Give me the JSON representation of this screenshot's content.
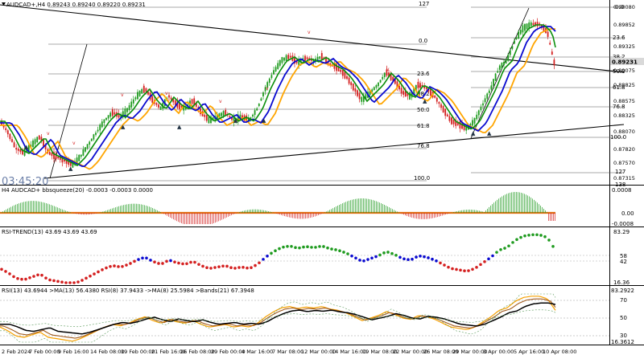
{
  "symbol_header": {
    "icon": "dropdown-triangle-icon",
    "text": "AUDCAD+,H4  0.89243 0.89240 0.89220 0.89231"
  },
  "main": {
    "price_labels": [
      "0.90080",
      "0.89852",
      "0.89325",
      "0.89231",
      "0.89075",
      "0.88825",
      "0.88575",
      "0.88325",
      "0.88070",
      "0.87820",
      "0.87570",
      "0.87315"
    ],
    "current_price": "0.89231",
    "watermark_time": "03:45:20",
    "fib_left": {
      "level_127": "127",
      "level_0": "0.0",
      "level_236": "23.6",
      "level_382": "38.2",
      "level_50": "50.0",
      "level_618": "61.8",
      "level_764": "76.8",
      "level_100": "100.0"
    },
    "fib_right": {
      "level_0": "0.0",
      "level_236": "23.6",
      "level_382": "38.2",
      "level_50": "50.0",
      "level_618": "61.8",
      "level_764": "76.8",
      "level_100": "100.0",
      "level_127": "127",
      "level_138": "138"
    }
  },
  "bbsqueeze": {
    "title": "H4 AUDCAD+ bbsqueeze(20) -0.0003 -0.0003 0.0000",
    "axis_labels": [
      "0.0008",
      "0.00",
      "-0.0008"
    ]
  },
  "rsi_trend": {
    "title": "RSI-TREND(13) 43.69 43.69 43.69",
    "axis_labels": [
      "83.29",
      "58",
      "42",
      "16.36"
    ]
  },
  "rsi_panel": {
    "title": "RSI(13) 43.6944  >MA(13) 56.4380  RSI(8) 37.9433  ->MA(8) 25.5984  >Bands(21) 67.3948",
    "axis_labels": [
      "83.2922",
      "70",
      "50",
      "30",
      "16.3612"
    ]
  },
  "time_axis": [
    "2 Feb 2024",
    "7 Feb 00:00",
    "9 Feb 16:00",
    "14 Feb 08:00",
    "19 Feb 00:00",
    "21 Feb 16:00",
    "26 Feb 08:00",
    "29 Feb 00:00",
    "4 Mar 16:00",
    "7 Mar 08:00",
    "12 Mar 00:00",
    "14 Mar 16:00",
    "19 Mar 08:00",
    "22 Mar 00:00",
    "26 Mar 08:00",
    "29 Mar 00:00",
    "3 Apr 00:00",
    "5 Apr 16:00",
    "10 Apr 08:00"
  ],
  "colors": {
    "bull": "#1f9b1f",
    "bear": "#d42020",
    "ma_fast": "#0a0ad0",
    "ma_mid": "#0b8f0b",
    "ma_slow": "#ffa500",
    "price_tag": "#d9d9d9"
  }
}
